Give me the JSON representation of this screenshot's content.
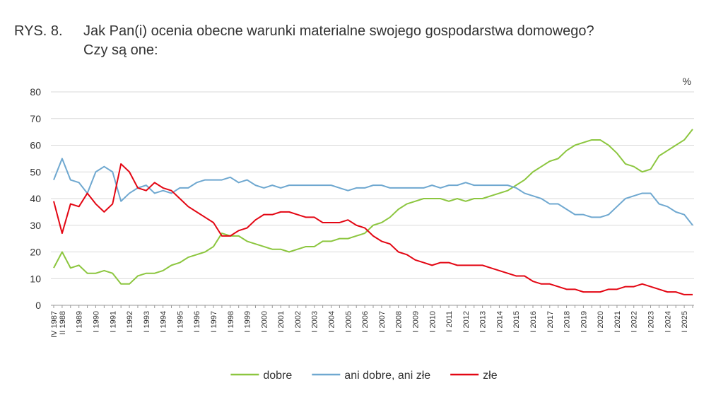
{
  "chart_data": {
    "type": "line",
    "title_number": "RYS. 8.",
    "title": "Jak Pan(i) ocenia obecne warunki materialne swojego gospodarstwa domowego?",
    "subtitle": "Czy są one:",
    "y_unit": "%",
    "categories": [
      "IV 1987",
      "II 1988",
      null,
      "I 1989",
      null,
      "I 1990",
      null,
      "I 1991",
      null,
      "I 1992",
      null,
      "I 1993",
      null,
      "I 1994",
      null,
      "I 1995",
      null,
      "I 1996",
      null,
      "I 1997",
      null,
      "I 1998",
      null,
      "I 1999",
      null,
      "I 2000",
      null,
      "I 2001",
      null,
      "I 2002",
      null,
      "I 2003",
      null,
      "I 2004",
      null,
      "I 2005",
      null,
      "I 2006",
      null,
      "I 2007",
      null,
      "I 2008",
      null,
      "I 2009",
      null,
      "I 2010",
      null,
      "I 2011",
      null,
      "I 2012",
      null,
      "I 2013",
      null,
      "I 2014",
      null,
      "I 2015",
      null,
      "I 2016",
      null,
      "I 2017",
      null,
      "I 2018",
      null,
      "I 2019",
      null,
      "I 2020",
      null,
      "I 2021",
      null,
      "I 2022",
      null,
      "I 2023",
      null,
      "I 2024",
      null,
      "I 2025",
      null
    ],
    "series": [
      {
        "name": "dobre",
        "color": "#8cc63f",
        "values": [
          14,
          20,
          14,
          15,
          12,
          12,
          13,
          12,
          8,
          8,
          11,
          12,
          12,
          13,
          15,
          16,
          18,
          19,
          20,
          22,
          27,
          26,
          26,
          24,
          23,
          22,
          21,
          21,
          20,
          21,
          22,
          22,
          24,
          24,
          25,
          25,
          26,
          27,
          30,
          31,
          33,
          36,
          38,
          39,
          40,
          40,
          40,
          39,
          40,
          39,
          40,
          40,
          41,
          42,
          43,
          45,
          47,
          50,
          52,
          54,
          55,
          58,
          60,
          61,
          62,
          62,
          60,
          57,
          53,
          52,
          50,
          51,
          56,
          58,
          60,
          62,
          66
        ]
      },
      {
        "name": "ani dobre, ani złe",
        "color": "#6fa8d0",
        "values": [
          47,
          55,
          47,
          46,
          42,
          50,
          52,
          50,
          39,
          42,
          44,
          45,
          42,
          43,
          42,
          44,
          44,
          46,
          47,
          47,
          47,
          48,
          46,
          47,
          45,
          44,
          45,
          44,
          45,
          45,
          45,
          45,
          45,
          45,
          44,
          43,
          44,
          44,
          45,
          45,
          44,
          44,
          44,
          44,
          44,
          45,
          44,
          45,
          45,
          46,
          45,
          45,
          45,
          45,
          45,
          44,
          42,
          41,
          40,
          38,
          38,
          36,
          34,
          34,
          33,
          33,
          34,
          37,
          40,
          41,
          42,
          42,
          38,
          37,
          35,
          34,
          30
        ]
      },
      {
        "name": "złe",
        "color": "#e30613",
        "values": [
          39,
          27,
          38,
          37,
          42,
          38,
          35,
          38,
          53,
          50,
          44,
          43,
          46,
          44,
          43,
          40,
          37,
          35,
          33,
          31,
          26,
          26,
          28,
          29,
          32,
          34,
          34,
          35,
          35,
          34,
          33,
          33,
          31,
          31,
          31,
          32,
          30,
          29,
          26,
          24,
          23,
          20,
          19,
          17,
          16,
          15,
          16,
          16,
          15,
          15,
          15,
          15,
          14,
          13,
          12,
          11,
          11,
          9,
          8,
          8,
          7,
          6,
          6,
          5,
          5,
          5,
          6,
          6,
          7,
          7,
          8,
          7,
          6,
          5,
          5,
          4,
          4
        ]
      }
    ],
    "ylim": [
      0,
      80
    ],
    "yticks": [
      0,
      10,
      20,
      30,
      40,
      50,
      60,
      70,
      80
    ],
    "grid": true,
    "legend": "bottom"
  }
}
